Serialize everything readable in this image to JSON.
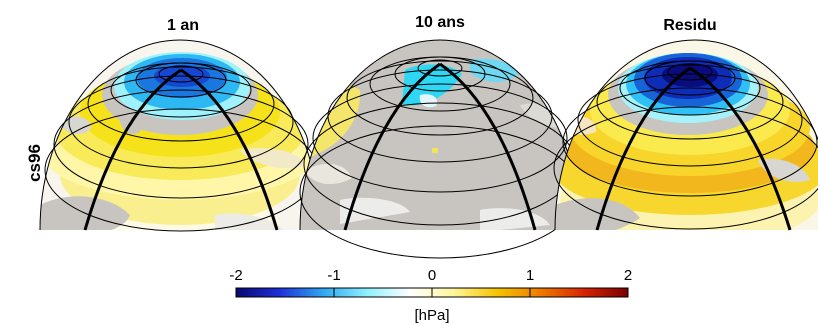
{
  "row_label": "cs96",
  "panels": [
    {
      "title": "1 an"
    },
    {
      "title": "10 ans"
    },
    {
      "title": "Residu"
    }
  ],
  "colorbar": {
    "ticks": [
      "-2",
      "-1",
      "0",
      "1",
      "2"
    ],
    "unit": "[hPa]",
    "min": -2,
    "max": 2,
    "colors": [
      "#08086e",
      "#1f2fd9",
      "#2ea7f2",
      "#8ff0ff",
      "#ffffff",
      "#fff59a",
      "#f6c300",
      "#ee7a00",
      "#d62400",
      "#7a0000"
    ]
  },
  "colors": {
    "land": "#c8c5c0",
    "grid": "#000000"
  }
}
